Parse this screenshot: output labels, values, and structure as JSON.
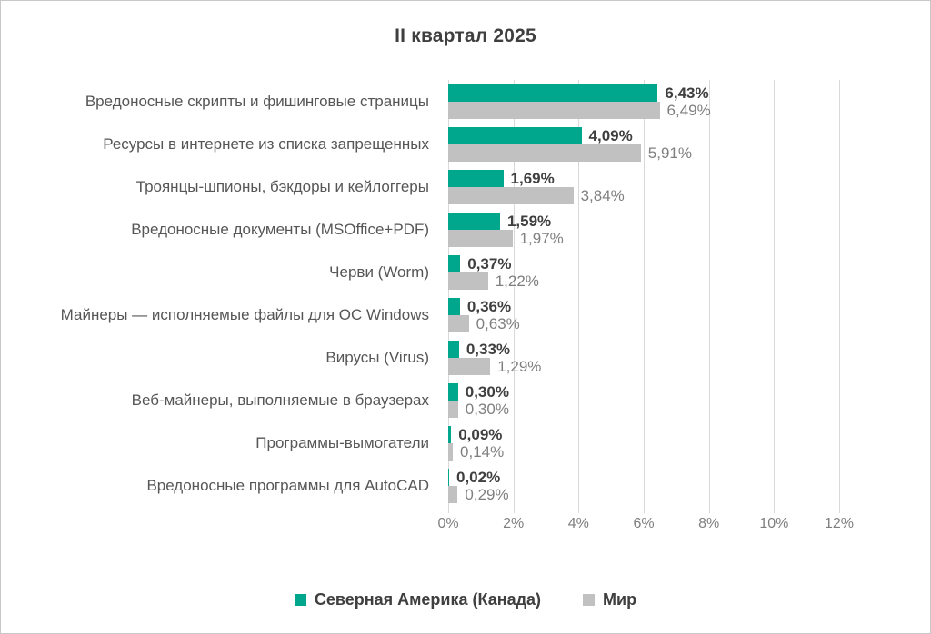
{
  "chart_data": {
    "type": "bar",
    "orientation": "horizontal",
    "title": "II квартал 2025",
    "categories": [
      "Вредоносные скрипты и фишинговые страницы",
      "Ресурсы в интернете из списка запрещенных",
      "Троянцы-шпионы, бэкдоры и кейлоггеры",
      "Вредоносные документы (MSOffice+PDF)",
      "Черви (Worm)",
      "Майнеры — исполняемые файлы для ОС Windows",
      "Вирусы (Virus)",
      "Веб-майнеры, выполняемые в браузерах",
      "Программы-вымогатели",
      "Вредоносные программы для AutoCAD"
    ],
    "series": [
      {
        "name": "Северная Америка (Канада)",
        "color": "#00a78c",
        "values": [
          6.43,
          4.09,
          1.69,
          1.59,
          0.37,
          0.36,
          0.33,
          0.3,
          0.09,
          0.02
        ],
        "labels": [
          "6,43%",
          "4,09%",
          "1,69%",
          "1,59%",
          "0,37%",
          "0,36%",
          "0,33%",
          "0,30%",
          "0,09%",
          "0,02%"
        ]
      },
      {
        "name": "Мир",
        "color": "#c1c1c1",
        "values": [
          6.49,
          5.91,
          3.84,
          1.97,
          1.22,
          0.63,
          1.29,
          0.3,
          0.14,
          0.29
        ],
        "labels": [
          "6,49%",
          "5,91%",
          "3,84%",
          "1,97%",
          "1,22%",
          "0,63%",
          "1,29%",
          "0,30%",
          "0,14%",
          "0,29%"
        ]
      }
    ],
    "xlabel": "",
    "ylabel": "",
    "xlim": [
      0,
      12
    ],
    "x_ticks": [
      "0%",
      "2%",
      "4%",
      "6%",
      "8%",
      "10%",
      "12%"
    ],
    "grid": "vertical",
    "legend_position": "bottom"
  }
}
